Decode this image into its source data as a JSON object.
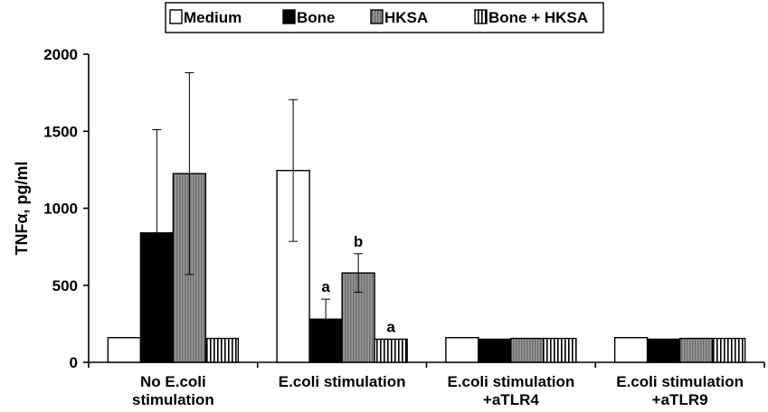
{
  "chart_data": {
    "type": "bar",
    "title": "",
    "xlabel": "",
    "ylabel": "TNFα, pg/ml",
    "ylim": [
      0,
      2000
    ],
    "yticks": [
      0,
      500,
      1000,
      1500,
      2000
    ],
    "legend_position": "top",
    "categories": [
      [
        "No E.coli",
        "stimulation"
      ],
      [
        "E.coli stimulation"
      ],
      [
        "E.coli stimulation",
        "+aTLR4"
      ],
      [
        "E.coli stimulation",
        "+aTLR9"
      ]
    ],
    "series": [
      {
        "name": "Medium",
        "values": [
          160,
          1245,
          160,
          160
        ],
        "errors": [
          0,
          460,
          0,
          0
        ],
        "annotations": [
          "",
          "",
          "",
          ""
        ]
      },
      {
        "name": "Bone",
        "values": [
          840,
          280,
          150,
          150
        ],
        "errors": [
          670,
          130,
          0,
          0
        ],
        "annotations": [
          "",
          "a",
          "",
          ""
        ]
      },
      {
        "name": "HKSA",
        "values": [
          1225,
          580,
          155,
          155
        ],
        "errors": [
          655,
          125,
          0,
          0
        ],
        "annotations": [
          "",
          "b",
          "",
          ""
        ]
      },
      {
        "name": "Bone  + HKSA",
        "values": [
          155,
          150,
          155,
          155
        ],
        "errors": [
          0,
          0,
          0,
          0
        ],
        "annotations": [
          "",
          "a",
          "",
          ""
        ]
      }
    ],
    "colors": {
      "medium": "#ffffff",
      "bone": "#000000",
      "hksa": "#8a8a8a",
      "bone_hksa": "#ffffff",
      "stroke": "#000000"
    }
  }
}
